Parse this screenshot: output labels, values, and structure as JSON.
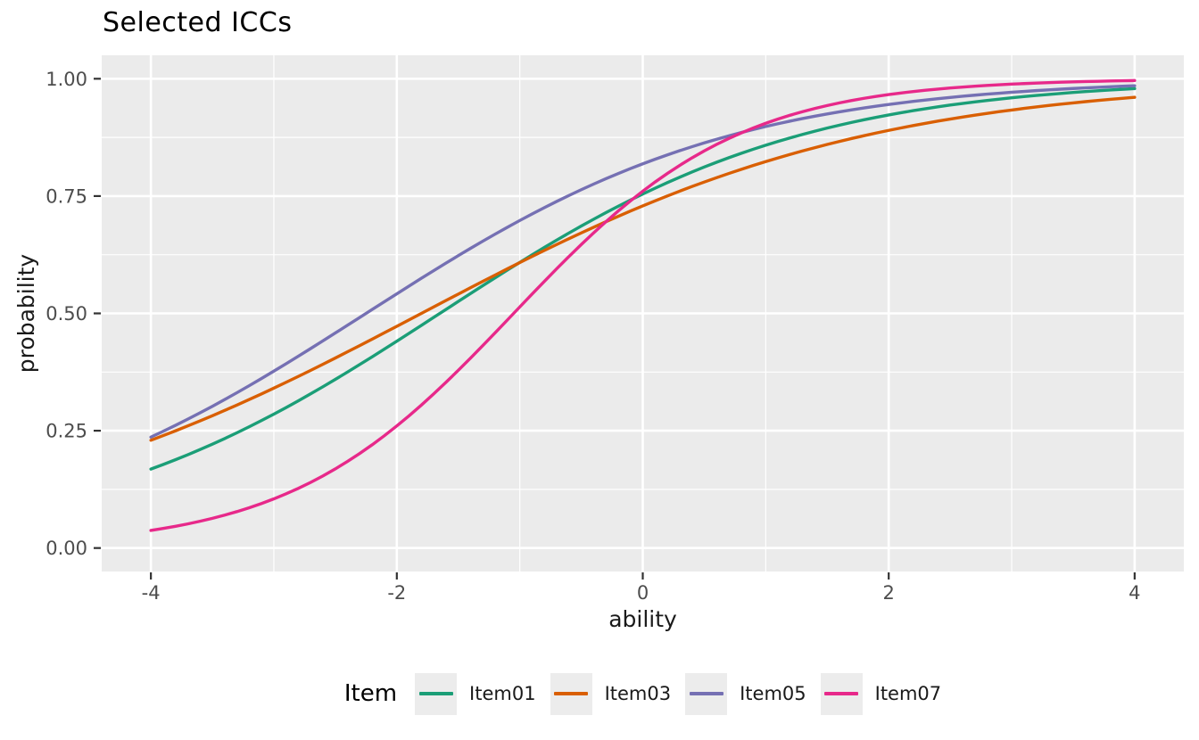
{
  "title": "Selected ICCs",
  "chart_data": {
    "type": "line",
    "title": "Selected ICCs",
    "xlabel": "ability",
    "ylabel": "probability",
    "xlim": [
      -4.4,
      4.4
    ],
    "ylim": [
      -0.05,
      1.05
    ],
    "x_major_ticks": [
      -4,
      -2,
      0,
      2,
      4
    ],
    "x_tick_labels": [
      "-4",
      "-2",
      "0",
      "2",
      "4"
    ],
    "x_minor_ticks": [
      -3,
      -1,
      1,
      3
    ],
    "y_major_ticks": [
      0,
      0.25,
      0.5,
      0.75,
      1
    ],
    "y_tick_labels": [
      "0.00",
      "0.25",
      "0.50",
      "0.75",
      "1.00"
    ],
    "y_minor_ticks": [
      0.125,
      0.375,
      0.625,
      0.875
    ],
    "grid": "major+minor",
    "legend_title": "Item",
    "legend_position": "bottom",
    "x": [
      -4,
      -3,
      -2,
      -1,
      0,
      1,
      2,
      3,
      4
    ],
    "series": [
      {
        "name": "Item01",
        "color": "#1B9E77",
        "model": {
          "type": "logistic-2PL",
          "a": 0.68,
          "b": -1.65
        },
        "values": [
          0.168,
          0.285,
          0.441,
          0.609,
          0.754,
          0.859,
          0.923,
          0.959,
          0.979
        ]
      },
      {
        "name": "Item03",
        "color": "#D95F02",
        "model": {
          "type": "logistic-2PL",
          "a": 0.55,
          "b": -1.8
        },
        "values": [
          0.23,
          0.341,
          0.473,
          0.608,
          0.729,
          0.824,
          0.89,
          0.933,
          0.96
        ]
      },
      {
        "name": "Item05",
        "color": "#7570B3",
        "model": {
          "type": "logistic-2PL",
          "a": 0.67,
          "b": -2.25
        },
        "values": [
          0.236,
          0.377,
          0.542,
          0.698,
          0.819,
          0.898,
          0.945,
          0.971,
          0.985
        ]
      },
      {
        "name": "Item07",
        "color": "#E7298A",
        "model": {
          "type": "logistic-2PL",
          "a": 1.1,
          "b": -1.05
        },
        "values": [
          0.038,
          0.105,
          0.26,
          0.514,
          0.76,
          0.905,
          0.966,
          0.988,
          0.996
        ]
      }
    ],
    "colors": {
      "panel_bg": "#EBEBEB",
      "grid": "#FFFFFF",
      "tick_text": "#4D4D4D",
      "axis_title_text": "#1A1A1A",
      "tick_mark": "#333333",
      "legend_key_bg": "#ECECEC"
    }
  }
}
